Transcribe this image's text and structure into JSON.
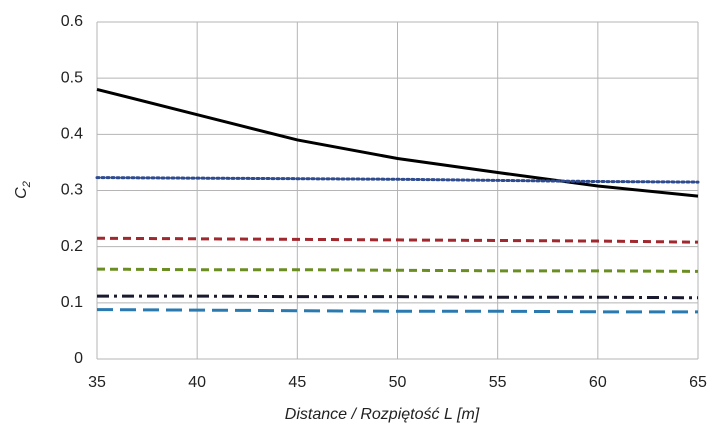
{
  "chart_data": {
    "type": "line",
    "x_label": "Distance / Rozpiętość L [m]",
    "y_label": "C",
    "y_label_subscript": "2",
    "x": [
      35,
      40,
      45,
      50,
      55,
      60,
      65
    ],
    "series": [
      {
        "color": "#000000",
        "dash": "solid",
        "values": [
          0.48,
          0.435,
          0.39,
          0.357,
          0.332,
          0.308,
          0.29
        ]
      },
      {
        "color": "#2e4b8f",
        "dash": "dotted",
        "values": [
          0.323,
          0.322,
          0.321,
          0.32,
          0.318,
          0.316,
          0.315
        ]
      },
      {
        "color": "#a0282e",
        "dash": "dashed",
        "values": [
          0.215,
          0.214,
          0.213,
          0.212,
          0.211,
          0.21,
          0.208
        ]
      },
      {
        "color": "#6b8e23",
        "dash": "dashed",
        "values": [
          0.16,
          0.159,
          0.159,
          0.158,
          0.157,
          0.157,
          0.156
        ]
      },
      {
        "color": "#1a1a2e",
        "dash": "dashdot",
        "values": [
          0.112,
          0.112,
          0.111,
          0.111,
          0.11,
          0.11,
          0.109
        ]
      },
      {
        "color": "#2a7ab0",
        "dash": "longdash",
        "values": [
          0.088,
          0.087,
          0.086,
          0.085,
          0.085,
          0.084,
          0.084
        ]
      }
    ],
    "xlim": [
      35,
      65
    ],
    "xticks": [
      35,
      40,
      45,
      50,
      55,
      60,
      65
    ],
    "ylim": [
      0,
      0.6
    ],
    "yticks": [
      0,
      0.1,
      0.2,
      0.3,
      0.4,
      0.5,
      0.6
    ],
    "grid": true
  }
}
